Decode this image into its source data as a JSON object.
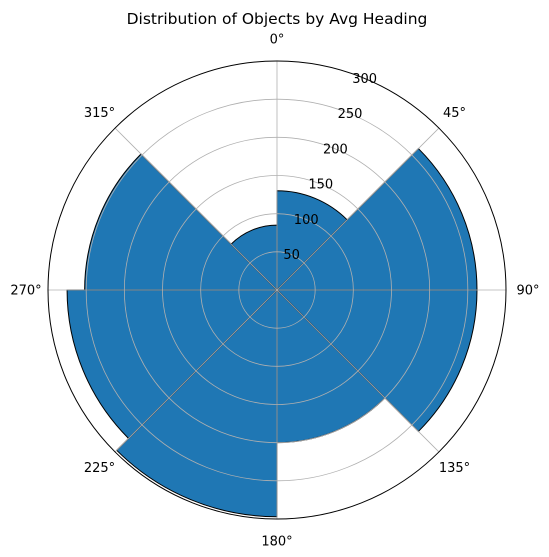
{
  "chart_data": {
    "type": "polar-bar",
    "title": "Distribution of Objects by Avg Heading",
    "direction": "clockwise",
    "zero_location": "top",
    "angle_ticks": [
      "0°",
      "45°",
      "90°",
      "135°",
      "180°",
      "225°",
      "270°",
      "315°"
    ],
    "radial_ticks": [
      50,
      100,
      150,
      200,
      250,
      300
    ],
    "rlim": [
      0,
      300
    ],
    "grid": true,
    "bin_width_deg": 45,
    "bins": [
      {
        "start_deg": 0,
        "value": 130
      },
      {
        "start_deg": 45,
        "value": 262
      },
      {
        "start_deg": 90,
        "value": 262
      },
      {
        "start_deg": 135,
        "value": 200
      },
      {
        "start_deg": 180,
        "value": 297
      },
      {
        "start_deg": 225,
        "value": 275
      },
      {
        "start_deg": 270,
        "value": 252
      },
      {
        "start_deg": 315,
        "value": 85
      }
    ],
    "colors": {
      "bar": "#1f77b4",
      "edge": "#000000",
      "grid": "#b0b0b0"
    }
  }
}
